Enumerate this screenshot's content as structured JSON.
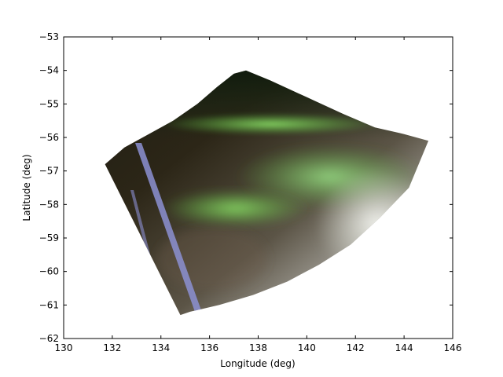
{
  "chart_data": {
    "type": "image-map",
    "title": "",
    "xlabel": "Longitude (deg)",
    "ylabel": "Latitude (deg)",
    "xlim": [
      130,
      146
    ],
    "ylim": [
      -62,
      -53
    ],
    "xticks": [
      130,
      132,
      134,
      136,
      138,
      140,
      142,
      144,
      146
    ],
    "yticks": [
      -53,
      -54,
      -55,
      -56,
      -57,
      -58,
      -59,
      -60,
      -61,
      -62
    ],
    "xtick_labels": [
      "130",
      "132",
      "134",
      "136",
      "138",
      "140",
      "142",
      "144",
      "146"
    ],
    "ytick_labels": [
      "−53",
      "−54",
      "−55",
      "−56",
      "−57",
      "−58",
      "−59",
      "−60",
      "−61",
      "−62"
    ],
    "grid": false,
    "image_footprint": {
      "lon": [
        131.7,
        132.5,
        133.5,
        134.5,
        135.5,
        136.3,
        137.0,
        137.5,
        138.5,
        140.0,
        141.5,
        142.8,
        144.0,
        145.0,
        144.2,
        143.0,
        141.8,
        140.5,
        139.2,
        137.8,
        136.4,
        135.2,
        134.8
      ],
      "lat": [
        -56.8,
        -56.3,
        -55.9,
        -55.5,
        -55.0,
        -54.5,
        -54.1,
        -54.0,
        -54.3,
        -54.8,
        -55.3,
        -55.7,
        -55.9,
        -56.1,
        -57.5,
        -58.4,
        -59.2,
        -59.8,
        -60.3,
        -60.7,
        -61.0,
        -61.2,
        -61.3
      ]
    },
    "colors": {
      "aurora_green": "#6fd94a",
      "dark": "#1e1c14",
      "brown": "#3a2e1e",
      "haze": "#f2f2f0",
      "edge_stripe": "#8a8fd0"
    }
  }
}
